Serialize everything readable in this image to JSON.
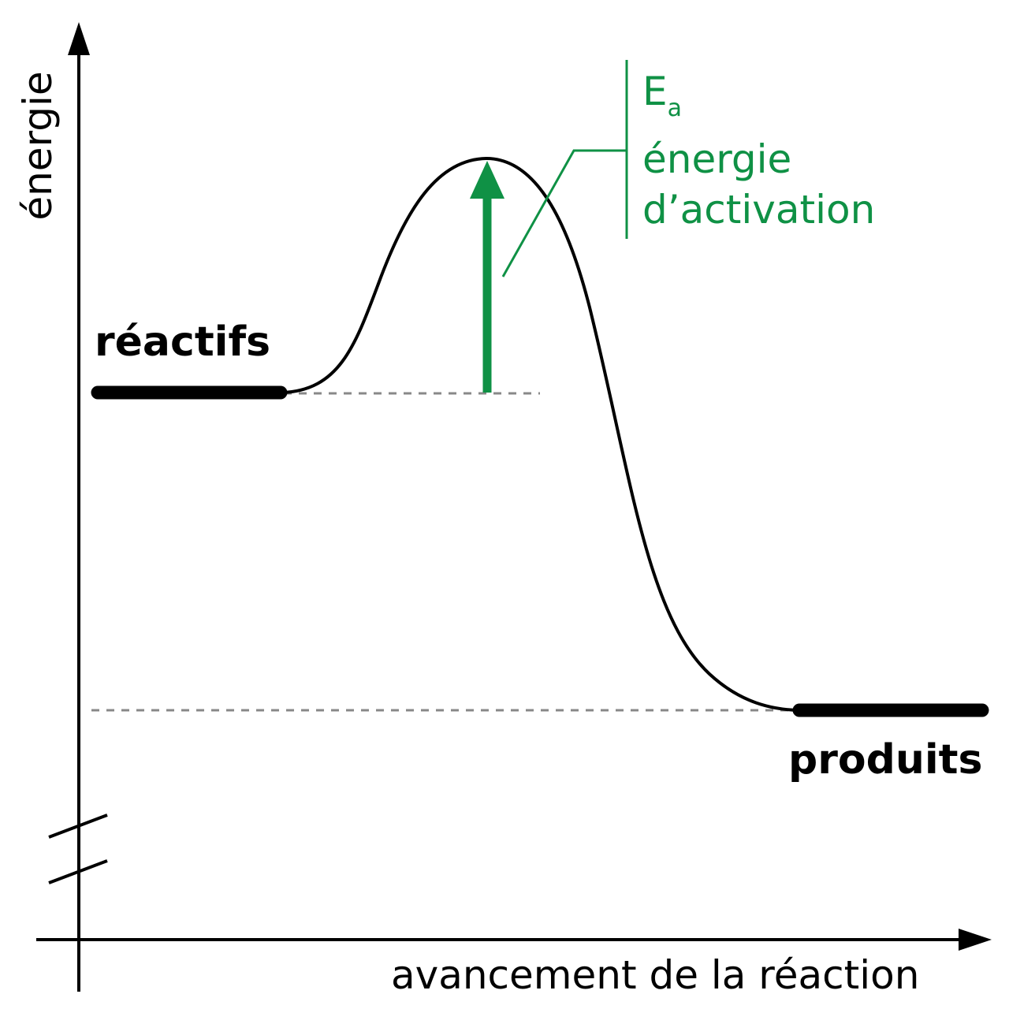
{
  "axes": {
    "x_label": "avancement de la réaction",
    "y_label": "énergie"
  },
  "states": {
    "reactants": "réactifs",
    "products": "produits"
  },
  "activation": {
    "symbol": "E",
    "subscript": "a",
    "line1": "énergie",
    "line2": "d’activation",
    "color": "#0f9145"
  },
  "colors": {
    "curve": "#000000",
    "reference_lines": "#888888"
  }
}
